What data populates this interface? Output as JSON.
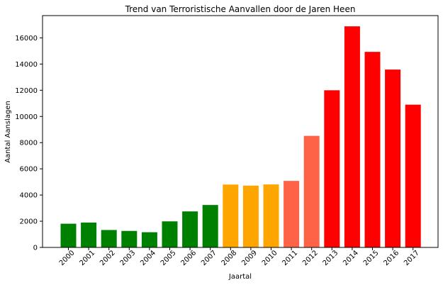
{
  "chart_data": {
    "type": "bar",
    "title": "Trend van Terroristische Aanvallen door de Jaren Heen",
    "xlabel": "Jaartal",
    "ylabel": "Aantal Aanslagen",
    "categories": [
      "2000",
      "2001",
      "2002",
      "2003",
      "2004",
      "2005",
      "2006",
      "2007",
      "2008",
      "2009",
      "2010",
      "2011",
      "2012",
      "2013",
      "2014",
      "2015",
      "2016",
      "2017"
    ],
    "values": [
      1810,
      1900,
      1330,
      1260,
      1160,
      1990,
      2750,
      3240,
      4800,
      4720,
      4810,
      5080,
      8520,
      12000,
      16880,
      14930,
      13580,
      10900
    ],
    "colors": [
      "#008000",
      "#008000",
      "#008000",
      "#008000",
      "#008000",
      "#008000",
      "#008000",
      "#008000",
      "#FFA500",
      "#FFA500",
      "#FFA500",
      "#FF6347",
      "#FF6347",
      "#FF0000",
      "#FF0000",
      "#FF0000",
      "#FF0000",
      "#FF0000"
    ],
    "ylim": [
      0,
      17700
    ],
    "yticks": [
      0,
      2000,
      4000,
      6000,
      8000,
      10000,
      12000,
      14000,
      16000
    ],
    "grid": false,
    "legend": "none"
  }
}
